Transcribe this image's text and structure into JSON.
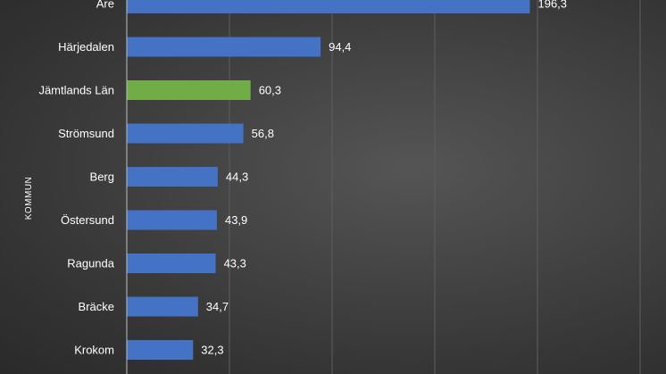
{
  "chart_data": {
    "type": "bar",
    "orientation": "horizontal",
    "ylabel": "KOMMUN",
    "categories": [
      "Åre",
      "Härjedalen",
      "Jämtlands Län",
      "Strömsund",
      "Berg",
      "Östersund",
      "Ragunda",
      "Bräcke",
      "Krokom"
    ],
    "values": [
      196.3,
      94.4,
      60.3,
      56.8,
      44.3,
      43.9,
      43.3,
      34.7,
      32.3
    ],
    "value_labels": [
      "196,3",
      "94,4",
      "60,3",
      "56,8",
      "44,3",
      "43,9",
      "43,3",
      "34,7",
      "32,3"
    ],
    "highlight_category": "Jämtlands Län",
    "colors": {
      "bar": "#4472c4",
      "highlight": "#70ad47",
      "grid": "#5e5e5e",
      "axis": "#bfbfbf",
      "text": "#ffffff"
    },
    "xlim": [
      0,
      260
    ],
    "grid": true
  }
}
